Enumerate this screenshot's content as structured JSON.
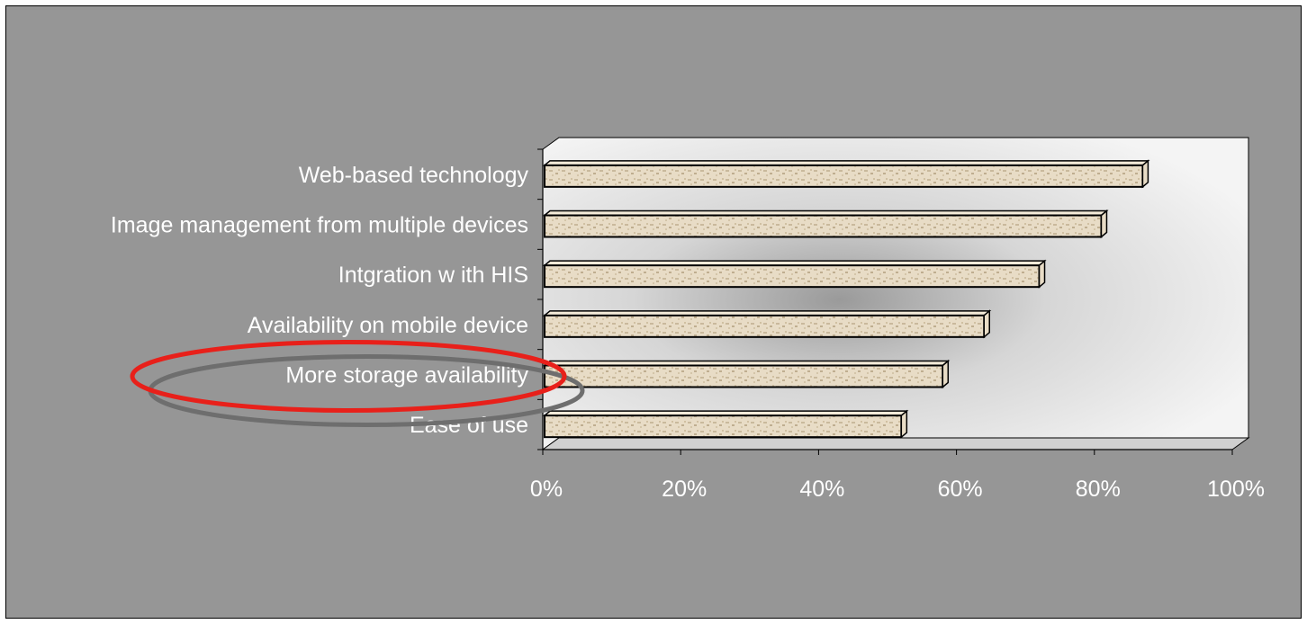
{
  "chart_data": {
    "type": "bar",
    "orientation": "horizontal",
    "categories": [
      "Web-based technology",
      "Image management from multiple devices",
      "Intgration w ith HIS",
      "Availability on mobile device",
      "More storage availability",
      "Ease of use"
    ],
    "values": [
      87,
      81,
      72,
      64,
      58,
      52
    ],
    "value_unit": "%",
    "xlim": [
      0,
      100
    ],
    "x_ticks": [
      "0%",
      "20%",
      "40%",
      "60%",
      "80%",
      "100%"
    ],
    "title": "",
    "xlabel": "",
    "ylabel": "",
    "grid": false,
    "style": "3d",
    "highlighted_category": "More storage availability",
    "colors": {
      "background": "#969696",
      "bar_fill": "#e8dcc6",
      "bar_texture": "#b8a88c",
      "bar_outline": "#000000",
      "plot_wall": "#f2f2f2",
      "text": "#ffffff",
      "highlight_ellipse": "#e8201a",
      "shadow_ellipse": "#6e6e6e"
    }
  }
}
